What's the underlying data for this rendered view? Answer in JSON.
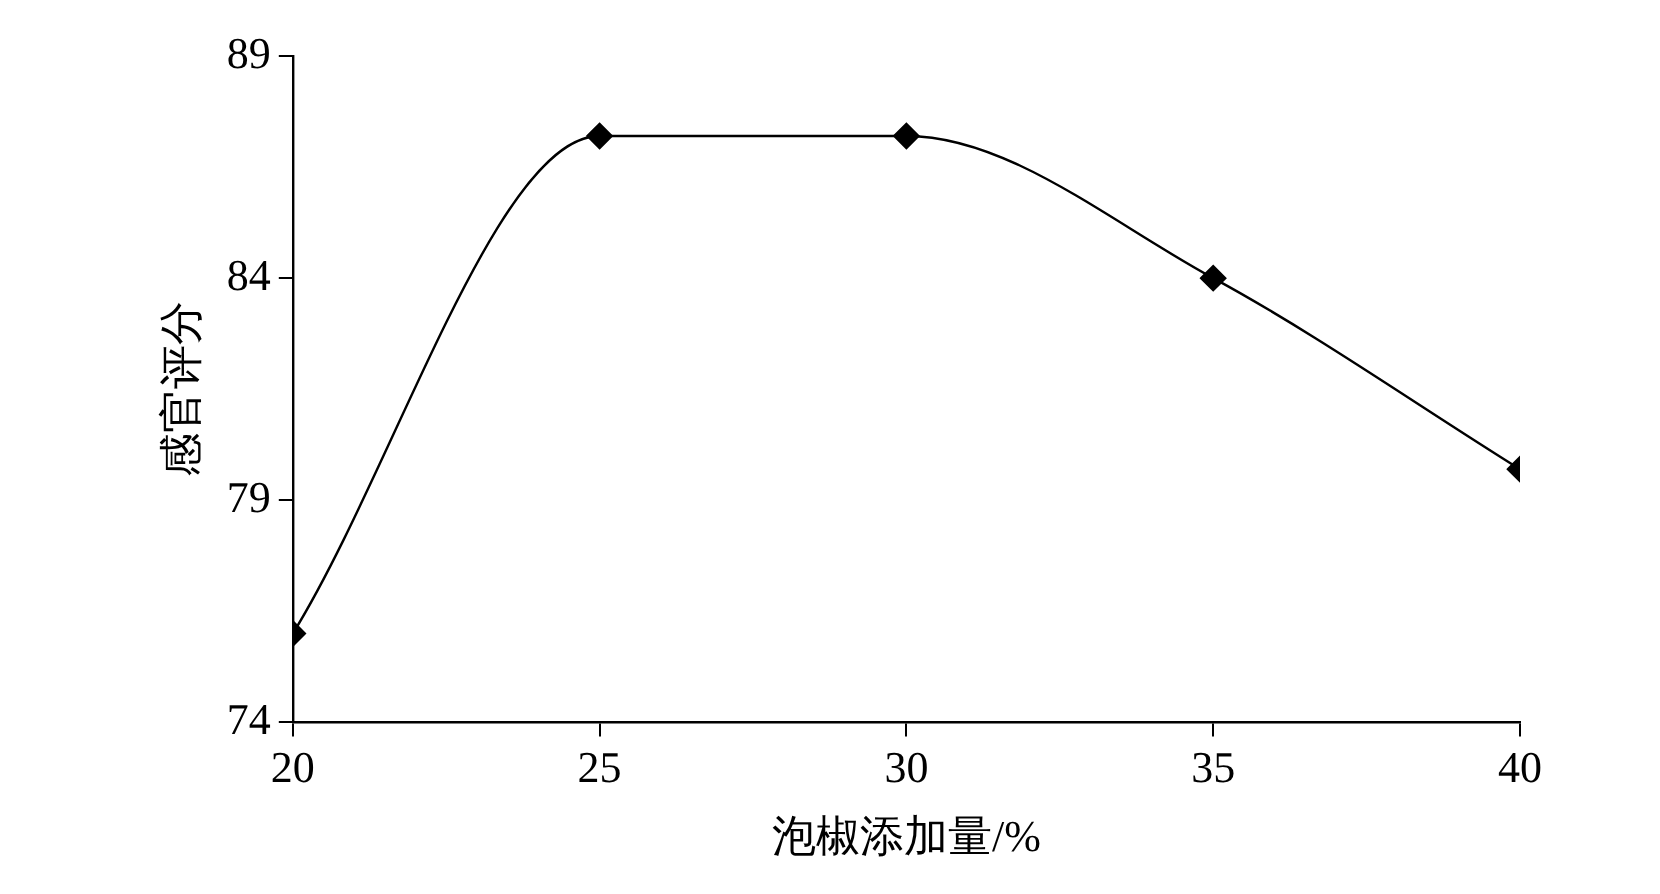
{
  "chart_data": {
    "type": "line",
    "xlabel": "泡椒添加量/%",
    "ylabel": "感官评分",
    "x": [
      20,
      25,
      30,
      35,
      40
    ],
    "series": [
      {
        "color": "#000000",
        "values": [
          76.0,
          87.2,
          87.2,
          84.0,
          79.7
        ]
      }
    ],
    "xlim": [
      20,
      40
    ],
    "xticks": [
      20,
      25,
      30,
      35,
      40
    ],
    "ylim": [
      74,
      89
    ],
    "yticks": [
      74,
      79,
      84,
      89
    ],
    "grid": false,
    "legend": false,
    "marker": "diamond",
    "line_style": "solid"
  }
}
